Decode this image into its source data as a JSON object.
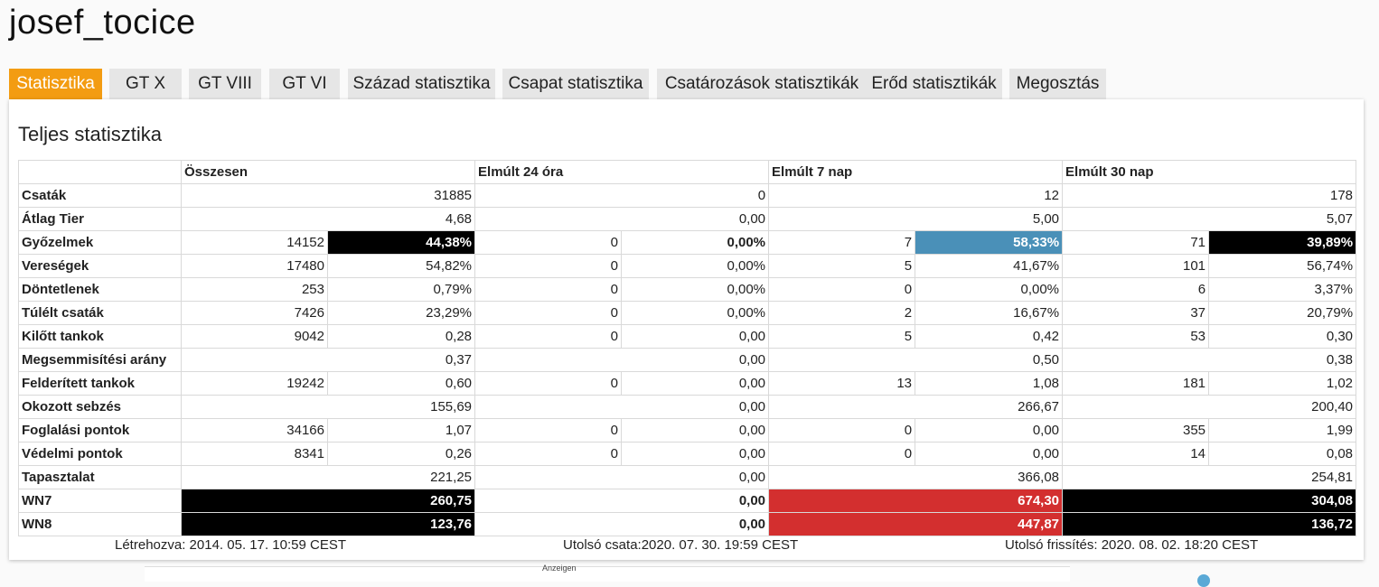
{
  "page": {
    "title": "josef_tocice"
  },
  "tabs": [
    {
      "label": "Statisztika"
    },
    {
      "label": "GT X"
    },
    {
      "label": "GT VIII"
    },
    {
      "label": "GT VI"
    },
    {
      "label": "Század statisztika"
    },
    {
      "label": "Csapat statisztika"
    },
    {
      "label": "Csatározások statisztikák"
    },
    {
      "label": "Erőd statisztikák"
    },
    {
      "label": "Megosztás"
    }
  ],
  "active_tab_color": "#f39c12",
  "stats": {
    "title": "Teljes statisztika",
    "headers": [
      "Összesen",
      "Elmúlt 24 óra",
      "Elmúlt 7 nap",
      "Elmúlt 30 nap"
    ],
    "rows": {
      "battles": {
        "label": "Csaták",
        "v": [
          "31885",
          "0",
          "12",
          "178"
        ]
      },
      "avg_tier": {
        "label": "Átlag Tier",
        "v": [
          "4,68",
          "0,00",
          "5,00",
          "5,07"
        ]
      },
      "wins": {
        "label": "Győzelmek",
        "v": [
          "14152",
          "44,38%",
          "0",
          "0,00%",
          "7",
          "58,33%",
          "71",
          "39,89%"
        ]
      },
      "losses": {
        "label": "Vereségek",
        "v": [
          "17480",
          "54,82%",
          "0",
          "0,00%",
          "5",
          "41,67%",
          "101",
          "56,74%"
        ]
      },
      "draws": {
        "label": "Döntetlenek",
        "v": [
          "253",
          "0,79%",
          "0",
          "0,00%",
          "0",
          "0,00%",
          "6",
          "3,37%"
        ]
      },
      "survived": {
        "label": "Túlélt csaták",
        "v": [
          "7426",
          "23,29%",
          "0",
          "0,00%",
          "2",
          "16,67%",
          "37",
          "20,79%"
        ]
      },
      "kills": {
        "label": "Kilőtt tankok",
        "v": [
          "9042",
          "0,28",
          "0",
          "0,00",
          "5",
          "0,42",
          "53",
          "0,30"
        ]
      },
      "kd": {
        "label": "Megsemmisítési arány",
        "v": [
          "0,37",
          "0,00",
          "0,50",
          "0,38"
        ]
      },
      "spotted": {
        "label": "Felderített tankok",
        "v": [
          "19242",
          "0,60",
          "0",
          "0,00",
          "13",
          "1,08",
          "181",
          "1,02"
        ]
      },
      "damage": {
        "label": "Okozott sebzés",
        "v": [
          "155,69",
          "0,00",
          "266,67",
          "200,40"
        ]
      },
      "capture": {
        "label": "Foglalási pontok",
        "v": [
          "34166",
          "1,07",
          "0",
          "0,00",
          "0",
          "0,00",
          "355",
          "1,99"
        ]
      },
      "defense": {
        "label": "Védelmi pontok",
        "v": [
          "8341",
          "0,26",
          "0",
          "0,00",
          "0",
          "0,00",
          "14",
          "0,08"
        ]
      },
      "xp": {
        "label": "Tapasztalat",
        "v": [
          "221,25",
          "0,00",
          "366,08",
          "254,81"
        ]
      },
      "wn7": {
        "label": "WN7",
        "v": [
          "260,75",
          "0,00",
          "674,30",
          "304,08"
        ]
      },
      "wn8": {
        "label": "WN8",
        "v": [
          "123,76",
          "0,00",
          "447,87",
          "136,72"
        ]
      }
    }
  },
  "rating_colors": {
    "black": "#000000",
    "red": "#d32f2f",
    "blue": "#4a90b8"
  },
  "footer": {
    "created": "Létrehozva: 2014. 05. 17. 10:59 CEST",
    "last_battle": "Utolsó csata:2020. 07. 30. 19:59 CEST",
    "last_update": "Utolsó frissítés: 2020. 08. 02. 18:20 CEST"
  },
  "ad": {
    "label": "Anzeigen"
  }
}
